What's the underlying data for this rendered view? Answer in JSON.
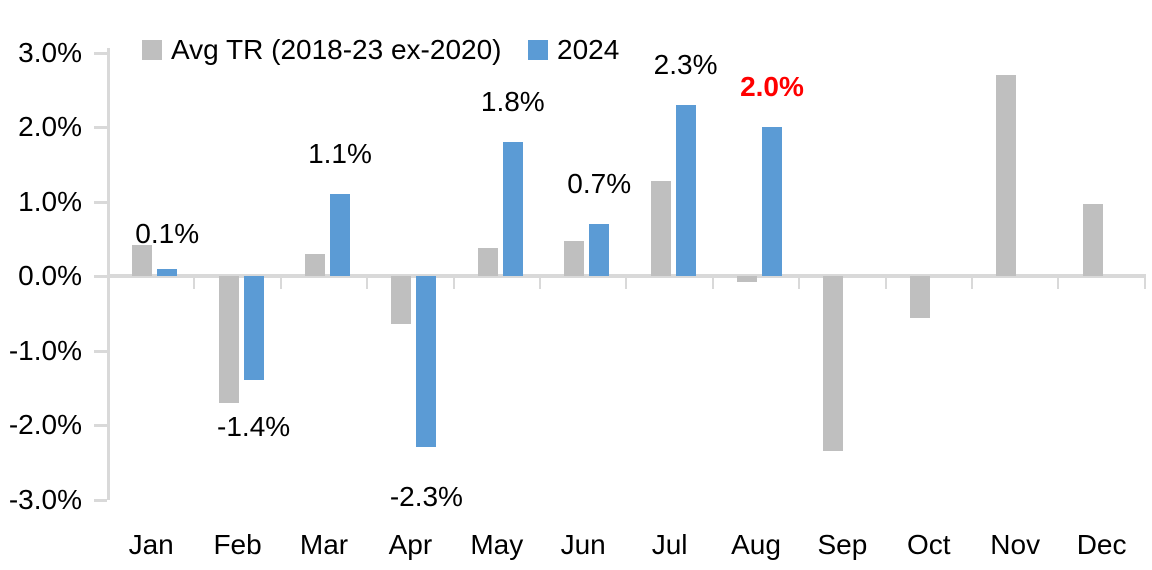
{
  "chart_data": {
    "type": "bar",
    "title": "",
    "categories": [
      "Jan",
      "Feb",
      "Mar",
      "Apr",
      "May",
      "Jun",
      "Jul",
      "Aug",
      "Sep",
      "Oct",
      "Nov",
      "Dec"
    ],
    "series": [
      {
        "name": "Avg TR (2018-23 ex-2020)",
        "color": "#BFBFBF",
        "values": [
          0.42,
          -1.7,
          0.3,
          -0.65,
          0.37,
          0.47,
          1.27,
          -0.08,
          -2.35,
          -0.57,
          2.7,
          0.97
        ]
      },
      {
        "name": "2024",
        "color": "#5B9BD5",
        "values": [
          0.1,
          -1.4,
          1.1,
          -2.3,
          1.8,
          0.7,
          2.3,
          2.0,
          null,
          null,
          null,
          null
        ],
        "data_labels": [
          "0.1%",
          "-1.4%",
          "1.1%",
          "-2.3%",
          "1.8%",
          "0.7%",
          "2.3%",
          "2.0%",
          null,
          null,
          null,
          null
        ],
        "data_label_colors": [
          "#000000",
          "#000000",
          "#000000",
          "#000000",
          "#000000",
          "#000000",
          "#000000",
          "#FF0000",
          null,
          null,
          null,
          null
        ],
        "data_label_bold": [
          false,
          false,
          false,
          false,
          false,
          false,
          false,
          true,
          null,
          null,
          null,
          null
        ]
      }
    ],
    "y_axis": {
      "ticks": [
        "3.0%",
        "2.0%",
        "1.0%",
        "0.0%",
        "-1.0%",
        "-2.0%",
        "-3.0%"
      ],
      "tick_values": [
        3,
        2,
        1,
        0,
        -1,
        -2,
        -3
      ],
      "ylim": [
        -3,
        3
      ]
    },
    "grid": false,
    "legend_position": "top",
    "axis_color": "#D9D9D9",
    "background": "#FFFFFF",
    "highlight_note": {
      "category": "Aug",
      "label": "2.0%",
      "color": "#FF0000"
    }
  },
  "legend": {
    "items": [
      {
        "label": "Avg TR (2018-23 ex-2020)",
        "color": "#BFBFBF"
      },
      {
        "label": "2024",
        "color": "#5B9BD5"
      }
    ]
  }
}
